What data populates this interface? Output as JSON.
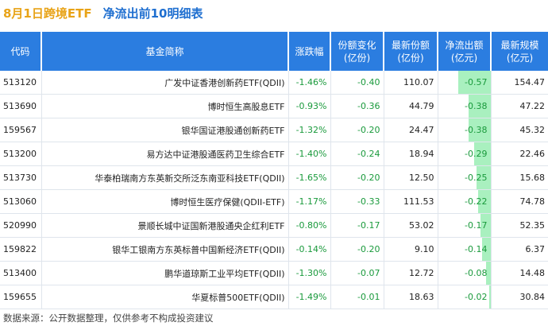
{
  "title": {
    "date_part": "8月1日跨境ETF",
    "main_part": "净流出前10明细表"
  },
  "headers": {
    "code": "代码",
    "name": "基金简称",
    "change": "涨跌幅",
    "share_change": [
      "份额变化",
      "(亿份)"
    ],
    "latest_share": [
      "最新份额",
      "(亿份)"
    ],
    "net_flow": [
      "净流出额",
      "(亿元)"
    ],
    "latest_scale": [
      "最新规模",
      "(亿元)"
    ]
  },
  "rows": [
    {
      "code": "513120",
      "name": "广发中证香港创新药ETF(QDII)",
      "change": "-1.46%",
      "share_change": "-0.40",
      "latest_share": "110.07",
      "net_flow": "-0.57",
      "net_flow_value": -0.57,
      "latest_scale": "154.47"
    },
    {
      "code": "513690",
      "name": "博时恒生高股息ETF",
      "change": "-0.93%",
      "share_change": "-0.36",
      "latest_share": "44.79",
      "net_flow": "-0.38",
      "net_flow_value": -0.38,
      "latest_scale": "47.22"
    },
    {
      "code": "159567",
      "name": "银华国证港股通创新药ETF",
      "change": "-1.32%",
      "share_change": "-0.20",
      "latest_share": "24.47",
      "net_flow": "-0.38",
      "net_flow_value": -0.38,
      "latest_scale": "45.32"
    },
    {
      "code": "513200",
      "name": "易方达中证港股通医药卫生综合ETF",
      "change": "-1.40%",
      "share_change": "-0.24",
      "latest_share": "18.94",
      "net_flow": "-0.29",
      "net_flow_value": -0.29,
      "latest_scale": "22.46"
    },
    {
      "code": "513730",
      "name": "华泰柏瑞南方东英新交所泛东南亚科技ETF(QDII)",
      "change": "-1.65%",
      "share_change": "-0.20",
      "latest_share": "12.50",
      "net_flow": "-0.25",
      "net_flow_value": -0.25,
      "latest_scale": "15.68"
    },
    {
      "code": "513060",
      "name": "博时恒生医疗保健(QDII-ETF)",
      "change": "-1.17%",
      "share_change": "-0.33",
      "latest_share": "111.53",
      "net_flow": "-0.22",
      "net_flow_value": -0.22,
      "latest_scale": "74.78"
    },
    {
      "code": "520990",
      "name": "景顺长城中证国新港股通央企红利ETF",
      "change": "-0.80%",
      "share_change": "-0.17",
      "latest_share": "53.02",
      "net_flow": "-0.17",
      "net_flow_value": -0.17,
      "latest_scale": "52.35"
    },
    {
      "code": "159822",
      "name": "银华工银南方东英标普中国新经济ETF(QDII)",
      "change": "-0.14%",
      "share_change": "-0.20",
      "latest_share": "9.10",
      "net_flow": "-0.14",
      "net_flow_value": -0.14,
      "latest_scale": "6.37"
    },
    {
      "code": "513400",
      "name": "鹏华道琼斯工业平均ETF(QDII)",
      "change": "-1.30%",
      "share_change": "-0.07",
      "latest_share": "12.72",
      "net_flow": "-0.08",
      "net_flow_value": -0.08,
      "latest_scale": "14.48"
    },
    {
      "code": "159655",
      "name": "华夏标普500ETF(QDII)",
      "change": "-1.49%",
      "share_change": "-0.01",
      "latest_share": "18.63",
      "net_flow": "-0.02",
      "net_flow_value": -0.02,
      "latest_scale": "30.84"
    }
  ],
  "footer": "数据来源：公开数据整理，仅供参考不构成投资建议",
  "colors": {
    "header_bg": "#2b7de0",
    "title_date": "#e8a317",
    "title_main": "#1f6fd0",
    "negative": "#1a9a3c",
    "flow_bar": "#a9f0bf"
  }
}
